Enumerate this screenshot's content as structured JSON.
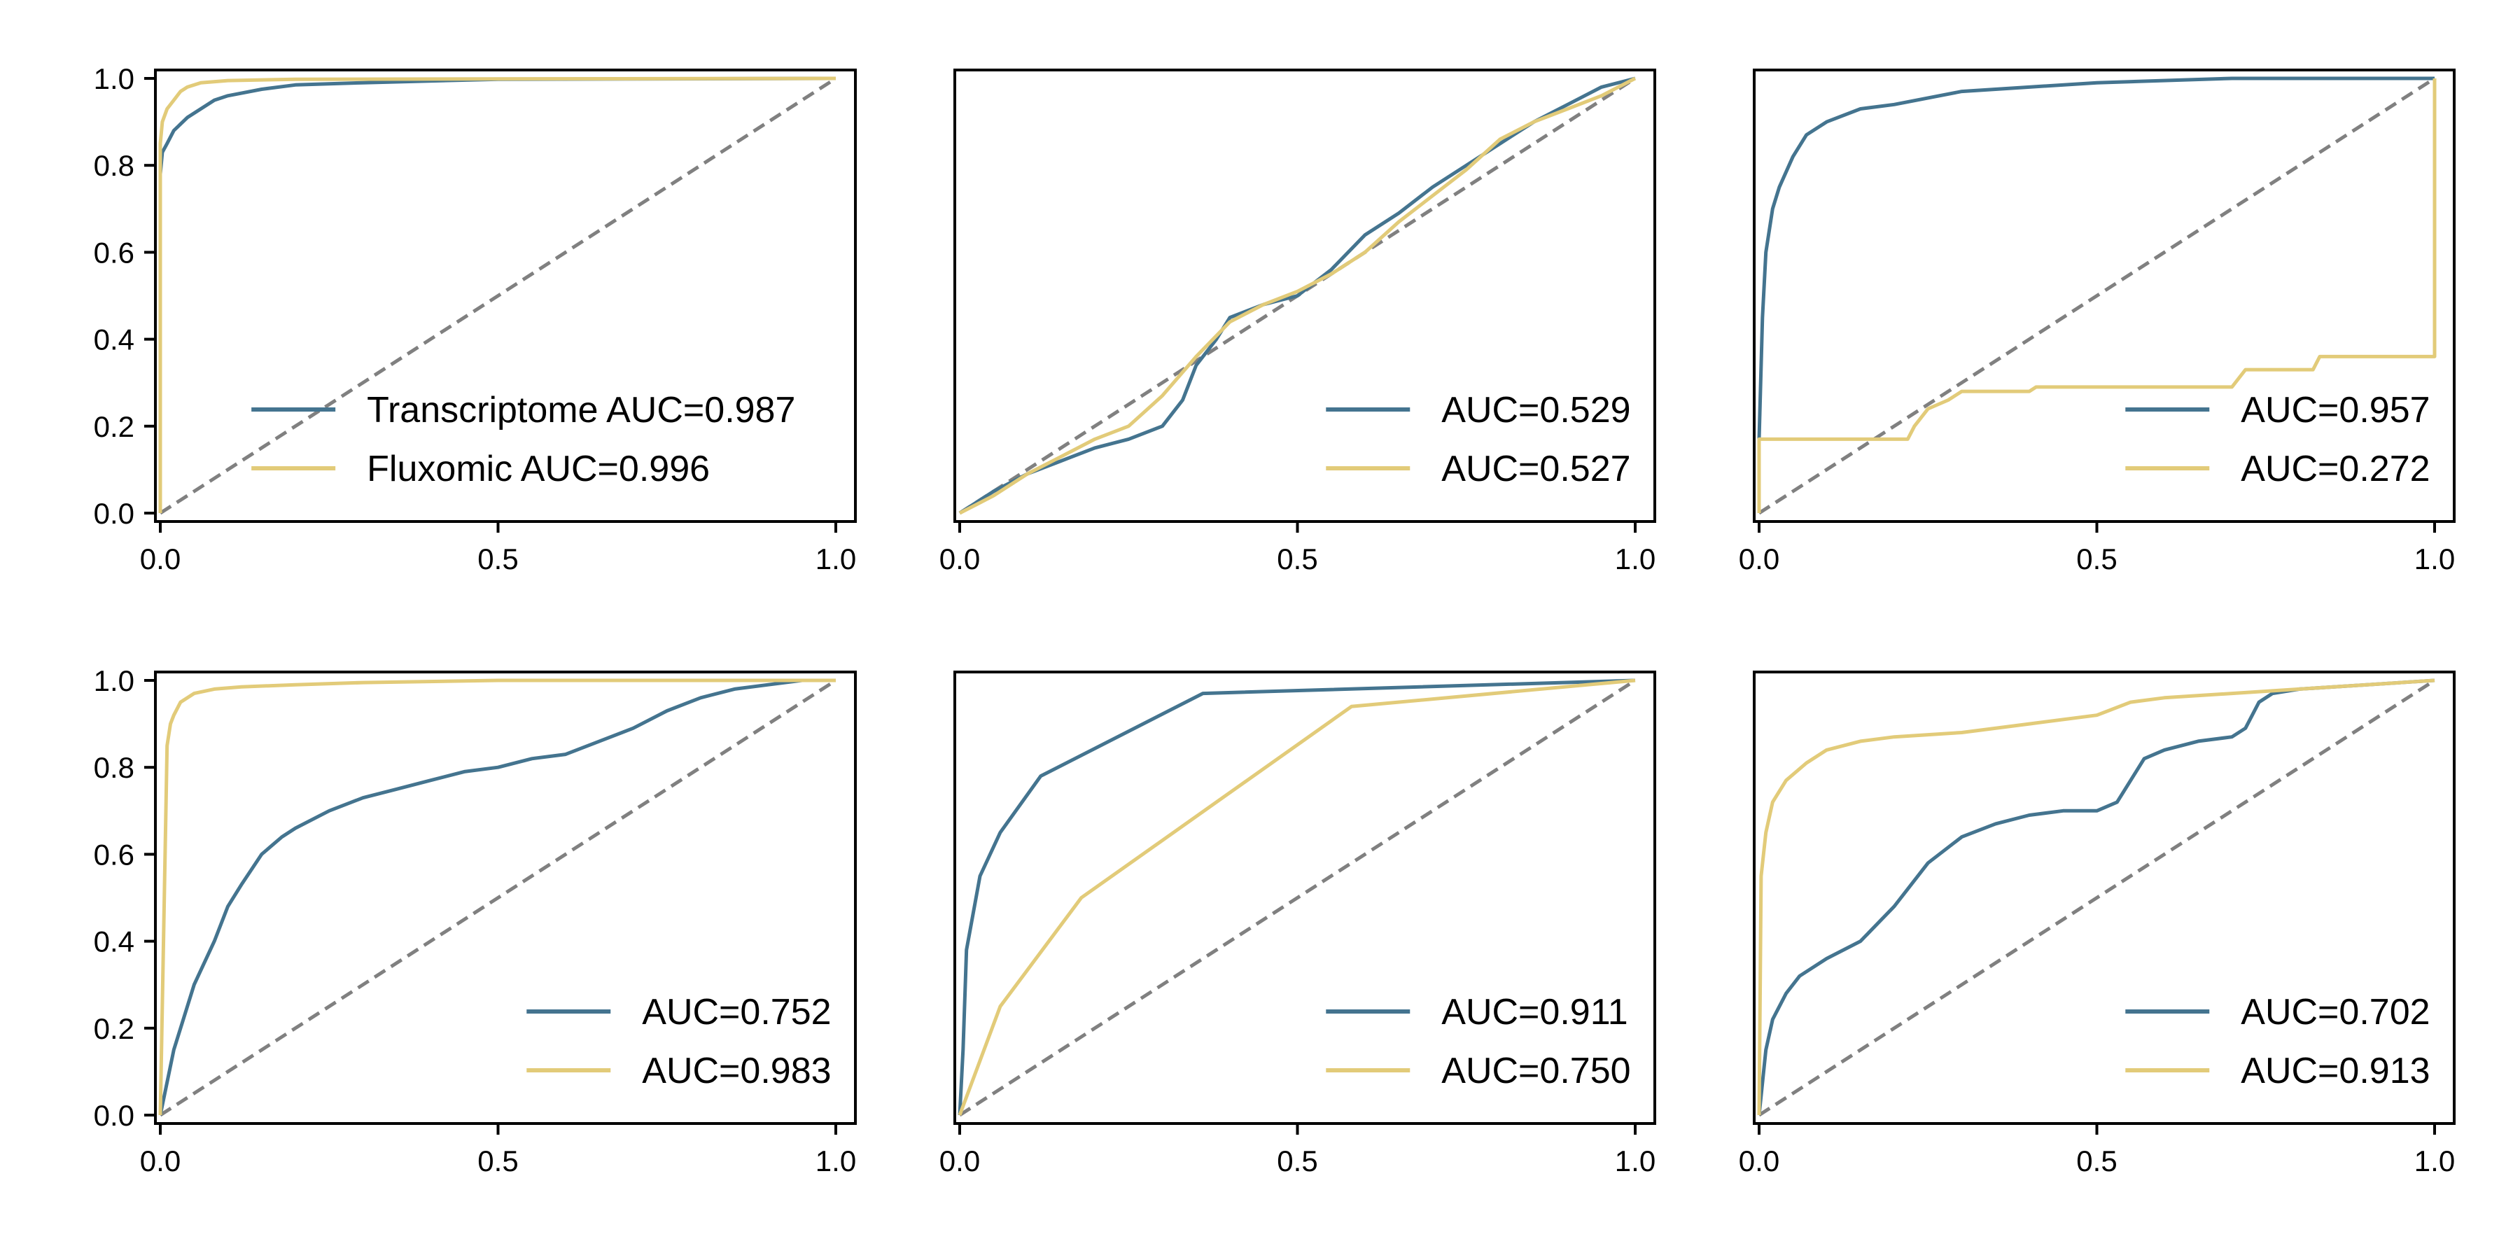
{
  "colors": {
    "transcriptome": "#44748F",
    "fluxomic": "#E2CB79",
    "diagonal": "#808080",
    "axes": "#000000"
  },
  "chart_data": [
    {
      "type": "line",
      "xlim": [
        0,
        1
      ],
      "ylim": [
        0,
        1
      ],
      "xticks": [
        "0.0",
        "0.5",
        "1.0"
      ],
      "yticks": [
        "0.0",
        "0.2",
        "0.4",
        "0.6",
        "0.8",
        "1.0"
      ],
      "show_yticks": true,
      "legend": "lower-right",
      "series": [
        {
          "name": "Transcriptome AUC=0.987",
          "x": [
            0,
            0,
            0.003,
            0.01,
            0.02,
            0.04,
            0.06,
            0.08,
            0.1,
            0.15,
            0.2,
            0.3,
            0.5,
            1
          ],
          "y": [
            0,
            0.78,
            0.83,
            0.85,
            0.88,
            0.91,
            0.93,
            0.95,
            0.96,
            0.975,
            0.985,
            0.99,
            0.998,
            1
          ]
        },
        {
          "name": "Fluxomic AUC=0.996",
          "x": [
            0,
            0,
            0.003,
            0.01,
            0.02,
            0.03,
            0.04,
            0.06,
            0.1,
            0.2,
            1
          ],
          "y": [
            0,
            0.85,
            0.9,
            0.93,
            0.95,
            0.97,
            0.98,
            0.99,
            0.995,
            0.998,
            1
          ]
        }
      ]
    },
    {
      "type": "line",
      "xlim": [
        0,
        1
      ],
      "ylim": [
        0,
        1
      ],
      "xticks": [
        "0.0",
        "0.5",
        "1.0"
      ],
      "yticks": [],
      "show_yticks": false,
      "legend": "lower-right",
      "series": [
        {
          "name": "AUC=0.529",
          "x": [
            0,
            0.05,
            0.1,
            0.15,
            0.2,
            0.25,
            0.3,
            0.33,
            0.35,
            0.38,
            0.4,
            0.45,
            0.5,
            0.55,
            0.6,
            0.65,
            0.7,
            0.75,
            0.8,
            0.85,
            0.9,
            0.95,
            1
          ],
          "y": [
            0,
            0.05,
            0.09,
            0.12,
            0.15,
            0.17,
            0.2,
            0.26,
            0.34,
            0.4,
            0.45,
            0.48,
            0.5,
            0.56,
            0.64,
            0.69,
            0.75,
            0.8,
            0.85,
            0.9,
            0.94,
            0.98,
            1
          ]
        },
        {
          "name": "AUC=0.527",
          "x": [
            0,
            0.05,
            0.1,
            0.15,
            0.2,
            0.25,
            0.3,
            0.35,
            0.4,
            0.45,
            0.5,
            0.55,
            0.6,
            0.65,
            0.7,
            0.75,
            0.8,
            0.85,
            0.9,
            0.95,
            1
          ],
          "y": [
            0,
            0.04,
            0.09,
            0.13,
            0.17,
            0.2,
            0.27,
            0.36,
            0.44,
            0.48,
            0.51,
            0.55,
            0.6,
            0.67,
            0.73,
            0.79,
            0.86,
            0.9,
            0.93,
            0.96,
            1
          ]
        }
      ]
    },
    {
      "type": "line",
      "xlim": [
        0,
        1
      ],
      "ylim": [
        0,
        1
      ],
      "xticks": [
        "0.0",
        "0.5",
        "1.0"
      ],
      "yticks": [],
      "show_yticks": false,
      "legend": "lower-right",
      "series": [
        {
          "name": "AUC=0.957",
          "x": [
            0,
            0,
            0.005,
            0.01,
            0.02,
            0.03,
            0.05,
            0.07,
            0.1,
            0.15,
            0.2,
            0.3,
            0.5,
            0.7,
            1
          ],
          "y": [
            0,
            0.17,
            0.45,
            0.6,
            0.7,
            0.75,
            0.82,
            0.87,
            0.9,
            0.93,
            0.94,
            0.97,
            0.99,
            1,
            1
          ]
        },
        {
          "name": "AUC=0.272",
          "x": [
            0,
            0,
            0.22,
            0.23,
            0.25,
            0.28,
            0.3,
            0.4,
            0.41,
            0.7,
            0.72,
            0.82,
            0.83,
            0.99,
            1,
            1
          ],
          "y": [
            0,
            0.17,
            0.17,
            0.2,
            0.24,
            0.26,
            0.28,
            0.28,
            0.29,
            0.29,
            0.33,
            0.33,
            0.36,
            0.36,
            0.36,
            1
          ]
        }
      ]
    },
    {
      "type": "line",
      "xlim": [
        0,
        1
      ],
      "ylim": [
        0,
        1
      ],
      "xticks": [
        "0.0",
        "0.5",
        "1.0"
      ],
      "yticks": [
        "0.0",
        "0.2",
        "0.4",
        "0.6",
        "0.8",
        "1.0"
      ],
      "show_yticks": true,
      "legend": "lower-right",
      "series": [
        {
          "name": "AUC=0.752",
          "x": [
            0,
            0.02,
            0.05,
            0.08,
            0.1,
            0.12,
            0.15,
            0.18,
            0.2,
            0.25,
            0.3,
            0.35,
            0.4,
            0.45,
            0.5,
            0.55,
            0.6,
            0.65,
            0.7,
            0.75,
            0.8,
            0.85,
            0.9,
            0.95,
            1
          ],
          "y": [
            0,
            0.15,
            0.3,
            0.4,
            0.48,
            0.53,
            0.6,
            0.64,
            0.66,
            0.7,
            0.73,
            0.75,
            0.77,
            0.79,
            0.8,
            0.82,
            0.83,
            0.86,
            0.89,
            0.93,
            0.96,
            0.98,
            0.99,
            1,
            1
          ]
        },
        {
          "name": "AUC=0.983",
          "x": [
            0,
            0.01,
            0.015,
            0.02,
            0.03,
            0.05,
            0.08,
            0.12,
            0.2,
            0.3,
            0.5,
            1
          ],
          "y": [
            0,
            0.85,
            0.9,
            0.92,
            0.95,
            0.97,
            0.98,
            0.985,
            0.99,
            0.995,
            1,
            1
          ]
        }
      ]
    },
    {
      "type": "line",
      "xlim": [
        0,
        1
      ],
      "ylim": [
        0,
        1
      ],
      "xticks": [
        "0.0",
        "0.5",
        "1.0"
      ],
      "yticks": [],
      "show_yticks": false,
      "legend": "lower-right",
      "series": [
        {
          "name": "AUC=0.911",
          "x": [
            0,
            0.005,
            0.01,
            0.03,
            0.06,
            0.12,
            0.36,
            1
          ],
          "y": [
            0,
            0.15,
            0.38,
            0.55,
            0.65,
            0.78,
            0.97,
            1
          ]
        },
        {
          "name": "AUC=0.750",
          "x": [
            0,
            0.06,
            0.18,
            0.58,
            1
          ],
          "y": [
            0,
            0.25,
            0.5,
            0.94,
            1
          ]
        }
      ]
    },
    {
      "type": "line",
      "xlim": [
        0,
        1
      ],
      "ylim": [
        0,
        1
      ],
      "xticks": [
        "0.0",
        "0.5",
        "1.0"
      ],
      "yticks": [],
      "show_yticks": false,
      "legend": "lower-right",
      "series": [
        {
          "name": "AUC=0.702",
          "x": [
            0,
            0.01,
            0.02,
            0.04,
            0.06,
            0.1,
            0.15,
            0.2,
            0.25,
            0.3,
            0.35,
            0.4,
            0.45,
            0.5,
            0.53,
            0.55,
            0.57,
            0.6,
            0.65,
            0.7,
            0.72,
            0.74,
            0.76,
            0.8,
            0.9,
            1
          ],
          "y": [
            0,
            0.15,
            0.22,
            0.28,
            0.32,
            0.36,
            0.4,
            0.48,
            0.58,
            0.64,
            0.67,
            0.69,
            0.7,
            0.7,
            0.72,
            0.77,
            0.82,
            0.84,
            0.86,
            0.87,
            0.89,
            0.95,
            0.97,
            0.98,
            0.99,
            1
          ]
        },
        {
          "name": "AUC=0.913",
          "x": [
            0,
            0.003,
            0.01,
            0.02,
            0.04,
            0.07,
            0.1,
            0.15,
            0.2,
            0.3,
            0.4,
            0.5,
            0.55,
            0.6,
            0.7,
            0.8,
            0.9,
            1
          ],
          "y": [
            0,
            0.55,
            0.65,
            0.72,
            0.77,
            0.81,
            0.84,
            0.86,
            0.87,
            0.88,
            0.9,
            0.92,
            0.95,
            0.96,
            0.97,
            0.98,
            0.99,
            1
          ]
        }
      ]
    }
  ]
}
